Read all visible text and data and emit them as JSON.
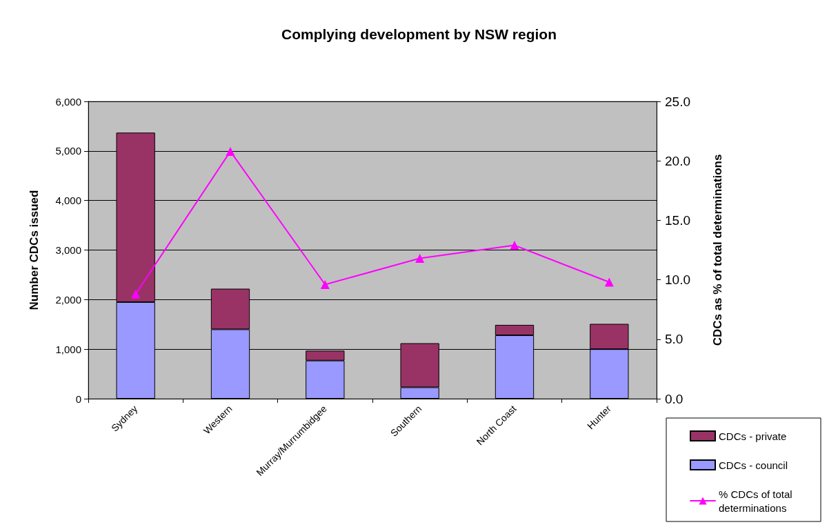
{
  "chart_data": {
    "type": "bar",
    "title": "Complying development by NSW region",
    "categories": [
      "Sydney",
      "Western",
      "Murray/Murrumbidgee",
      "Southern",
      "North Coast",
      "Hunter"
    ],
    "series": [
      {
        "name": "CDCs - council",
        "color": "#9999ff",
        "values": [
          1950,
          1400,
          770,
          230,
          1280,
          1000
        ]
      },
      {
        "name": "CDCs - private",
        "color": "#993366",
        "values": [
          3420,
          820,
          200,
          890,
          210,
          510
        ]
      },
      {
        "name": "% CDCs of total determinations",
        "type": "line",
        "axis": "y2",
        "color": "#ff00ff",
        "values": [
          8.8,
          20.8,
          9.6,
          11.8,
          12.9,
          9.8
        ]
      }
    ],
    "stacked": true,
    "marker": "triangle",
    "line_style": "solid",
    "ylabel": "Number CDCs issued",
    "y2label": "CDCs as % of total determinations",
    "ylim": [
      0,
      6000
    ],
    "yticks": [
      0,
      {
        "value": 1000,
        "label": "1,000"
      },
      {
        "value": 2000,
        "label": "2,000"
      },
      {
        "value": 3000,
        "label": "3,000"
      },
      {
        "value": 4000,
        "label": "4,000"
      },
      {
        "value": 5000,
        "label": "5,000"
      },
      {
        "value": 6000,
        "label": "6,000"
      }
    ],
    "y2lim": [
      0,
      25
    ],
    "y2ticks": [
      {
        "value": 0,
        "label": "0.0"
      },
      {
        "value": 5,
        "label": "5.0"
      },
      {
        "value": 10,
        "label": "10.0"
      },
      {
        "value": 15,
        "label": "15.0"
      },
      {
        "value": 20,
        "label": "20.0"
      },
      {
        "value": 25,
        "label": "25.0"
      }
    ],
    "grid": "y",
    "legend": "bottom right"
  }
}
